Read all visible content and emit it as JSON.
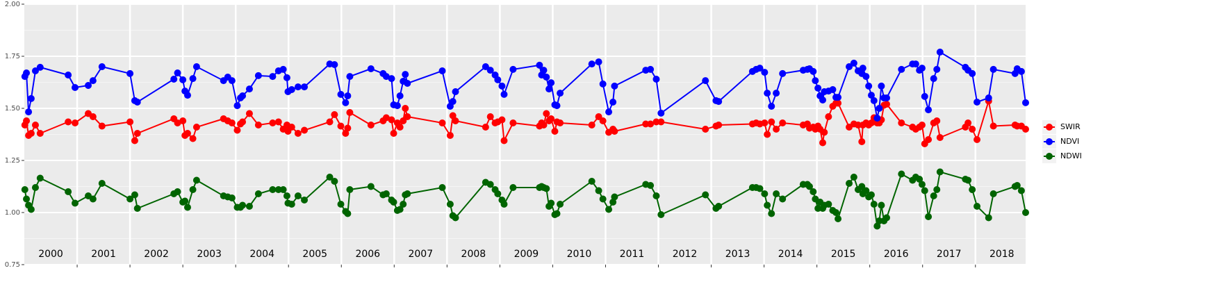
{
  "chart_data": {
    "type": "line",
    "x": [
      2000.01,
      2000.04,
      2000.08,
      2000.13,
      2000.21,
      2000.3,
      2000.83,
      2000.96,
      2001.21,
      2001.3,
      2001.47,
      2002.0,
      2002.09,
      2002.14,
      2002.83,
      2002.9,
      2003.0,
      2003.04,
      2003.09,
      2003.19,
      2003.26,
      2003.77,
      2003.85,
      2003.93,
      2004.03,
      2004.09,
      2004.13,
      2004.26,
      2004.43,
      2004.7,
      2004.81,
      2004.9,
      2004.97,
      2004.99,
      2005.06,
      2005.18,
      2005.3,
      2005.78,
      2005.87,
      2005.99,
      2006.08,
      2006.12,
      2006.16,
      2006.56,
      2006.79,
      2006.85,
      2006.95,
      2006.99,
      2007.06,
      2007.11,
      2007.17,
      2007.21,
      2007.25,
      2007.91,
      2008.06,
      2008.11,
      2008.16,
      2008.73,
      2008.82,
      2008.91,
      2008.96,
      2009.04,
      2009.08,
      2009.25,
      2009.75,
      2009.79,
      2009.83,
      2009.88,
      2009.93,
      2009.97,
      2010.04,
      2010.08,
      2010.14,
      2010.74,
      2010.87,
      2010.95,
      2011.06,
      2011.14,
      2011.17,
      2011.76,
      2011.85,
      2011.96,
      2012.05,
      2012.89,
      2013.09,
      2013.14,
      2013.78,
      2013.85,
      2013.92,
      2014.01,
      2014.06,
      2014.14,
      2014.23,
      2014.35,
      2014.74,
      2014.82,
      2014.86,
      2014.93,
      2014.97,
      2015.02,
      2015.06,
      2015.11,
      2015.14,
      2015.22,
      2015.3,
      2015.36,
      2015.4,
      2015.61,
      2015.7,
      2015.78,
      2015.85,
      2015.87,
      2015.93,
      2015.98,
      2016.03,
      2016.08,
      2016.14,
      2016.18,
      2016.22,
      2016.27,
      2016.32,
      2016.6,
      2016.81,
      2016.87,
      2016.94,
      2016.99,
      2017.04,
      2017.11,
      2017.21,
      2017.27,
      2017.33,
      2017.81,
      2017.86,
      2017.94,
      2018.03,
      2018.25,
      2018.34,
      2018.75,
      2018.79,
      2018.87,
      2018.95
    ],
    "series": [
      {
        "name": "SWIR",
        "color": "#ff0000",
        "values": [
          1.42,
          1.44,
          1.37,
          1.38,
          1.42,
          1.38,
          1.435,
          1.43,
          1.475,
          1.46,
          1.415,
          1.435,
          1.345,
          1.38,
          1.45,
          1.43,
          1.44,
          1.37,
          1.38,
          1.355,
          1.41,
          1.45,
          1.44,
          1.43,
          1.395,
          1.425,
          1.435,
          1.475,
          1.42,
          1.43,
          1.435,
          1.4,
          1.42,
          1.39,
          1.41,
          1.38,
          1.395,
          1.435,
          1.47,
          1.415,
          1.38,
          1.405,
          1.48,
          1.42,
          1.44,
          1.455,
          1.445,
          1.38,
          1.43,
          1.41,
          1.44,
          1.5,
          1.46,
          1.43,
          1.37,
          1.465,
          1.44,
          1.41,
          1.46,
          1.43,
          1.435,
          1.445,
          1.345,
          1.43,
          1.415,
          1.43,
          1.42,
          1.475,
          1.44,
          1.45,
          1.39,
          1.435,
          1.43,
          1.42,
          1.46,
          1.44,
          1.385,
          1.4,
          1.39,
          1.425,
          1.425,
          1.435,
          1.435,
          1.4,
          1.415,
          1.42,
          1.425,
          1.43,
          1.425,
          1.43,
          1.375,
          1.435,
          1.4,
          1.43,
          1.42,
          1.425,
          1.405,
          1.41,
          1.4,
          1.415,
          1.4,
          1.335,
          1.385,
          1.46,
          1.51,
          1.525,
          1.525,
          1.41,
          1.425,
          1.42,
          1.34,
          1.42,
          1.43,
          1.42,
          1.43,
          1.455,
          1.43,
          1.43,
          1.445,
          1.515,
          1.52,
          1.43,
          1.41,
          1.4,
          1.41,
          1.42,
          1.33,
          1.35,
          1.43,
          1.44,
          1.36,
          1.41,
          1.43,
          1.4,
          1.35,
          1.535,
          1.415,
          1.42,
          1.415,
          1.415,
          1.4
        ]
      },
      {
        "name": "NDVI",
        "color": "#0000ff",
        "values": [
          1.653,
          1.67,
          1.483,
          1.547,
          1.68,
          1.697,
          1.66,
          1.6,
          1.61,
          1.633,
          1.7,
          1.667,
          1.537,
          1.53,
          1.64,
          1.67,
          1.637,
          1.583,
          1.563,
          1.643,
          1.7,
          1.633,
          1.65,
          1.633,
          1.513,
          1.55,
          1.56,
          1.593,
          1.657,
          1.653,
          1.68,
          1.687,
          1.647,
          1.58,
          1.59,
          1.603,
          1.603,
          1.713,
          1.71,
          1.567,
          1.527,
          1.56,
          1.653,
          1.69,
          1.667,
          1.653,
          1.643,
          1.517,
          1.513,
          1.56,
          1.63,
          1.663,
          1.62,
          1.68,
          1.51,
          1.533,
          1.58,
          1.7,
          1.683,
          1.66,
          1.637,
          1.607,
          1.567,
          1.687,
          1.707,
          1.66,
          1.683,
          1.65,
          1.593,
          1.623,
          1.517,
          1.513,
          1.573,
          1.713,
          1.723,
          1.617,
          1.483,
          1.53,
          1.607,
          1.683,
          1.687,
          1.64,
          1.477,
          1.633,
          1.537,
          1.533,
          1.677,
          1.687,
          1.693,
          1.673,
          1.573,
          1.51,
          1.573,
          1.667,
          1.683,
          1.687,
          1.69,
          1.677,
          1.633,
          1.597,
          1.56,
          1.54,
          1.58,
          1.583,
          1.59,
          1.553,
          1.553,
          1.7,
          1.717,
          1.68,
          1.667,
          1.693,
          1.653,
          1.607,
          1.563,
          1.537,
          1.453,
          1.5,
          1.607,
          1.55,
          1.55,
          1.687,
          1.713,
          1.713,
          1.683,
          1.693,
          1.557,
          1.493,
          1.643,
          1.687,
          1.77,
          1.697,
          1.683,
          1.667,
          1.53,
          1.55,
          1.687,
          1.667,
          1.69,
          1.677,
          1.527
        ]
      },
      {
        "name": "NDWI",
        "color": "#006400",
        "values": [
          1.11,
          1.065,
          1.035,
          1.015,
          1.12,
          1.165,
          1.1,
          1.045,
          1.08,
          1.065,
          1.14,
          1.065,
          1.085,
          1.02,
          1.09,
          1.1,
          1.05,
          1.055,
          1.025,
          1.11,
          1.155,
          1.08,
          1.075,
          1.07,
          1.025,
          1.025,
          1.035,
          1.03,
          1.09,
          1.11,
          1.11,
          1.11,
          1.08,
          1.045,
          1.04,
          1.08,
          1.06,
          1.17,
          1.15,
          1.04,
          1.005,
          0.995,
          1.11,
          1.125,
          1.085,
          1.09,
          1.06,
          1.05,
          1.01,
          1.015,
          1.04,
          1.085,
          1.09,
          1.12,
          1.04,
          0.985,
          0.975,
          1.145,
          1.135,
          1.11,
          1.09,
          1.06,
          1.04,
          1.12,
          1.12,
          1.125,
          1.12,
          1.115,
          1.03,
          1.045,
          0.99,
          0.995,
          1.04,
          1.15,
          1.105,
          1.065,
          1.015,
          1.05,
          1.075,
          1.135,
          1.13,
          1.08,
          0.99,
          1.085,
          1.02,
          1.03,
          1.12,
          1.12,
          1.115,
          1.09,
          1.035,
          0.995,
          1.09,
          1.065,
          1.135,
          1.135,
          1.125,
          1.1,
          1.065,
          1.02,
          1.05,
          1.02,
          1.035,
          1.04,
          1.01,
          1.0,
          0.97,
          1.14,
          1.17,
          1.11,
          1.125,
          1.09,
          1.105,
          1.075,
          1.085,
          1.04,
          0.935,
          0.96,
          1.035,
          0.96,
          0.975,
          1.185,
          1.155,
          1.17,
          1.16,
          1.135,
          1.105,
          0.98,
          1.08,
          1.11,
          1.195,
          1.16,
          1.155,
          1.11,
          1.03,
          0.975,
          1.09,
          1.125,
          1.13,
          1.105,
          1.0
        ]
      }
    ],
    "xlim": [
      2000,
      2018.95
    ],
    "xticks": [
      {
        "value": 2000.5,
        "label": "2000"
      },
      {
        "value": 2001.5,
        "label": "2001"
      },
      {
        "value": 2002.5,
        "label": "2002"
      },
      {
        "value": 2003.5,
        "label": "2003"
      },
      {
        "value": 2004.5,
        "label": "2004"
      },
      {
        "value": 2005.5,
        "label": "2005"
      },
      {
        "value": 2006.5,
        "label": "2006"
      },
      {
        "value": 2007.5,
        "label": "2007"
      },
      {
        "value": 2008.5,
        "label": "2008"
      },
      {
        "value": 2009.5,
        "label": "2009"
      },
      {
        "value": 2010.5,
        "label": "2010"
      },
      {
        "value": 2011.5,
        "label": "2011"
      },
      {
        "value": 2012.5,
        "label": "2012"
      },
      {
        "value": 2013.5,
        "label": "2013"
      },
      {
        "value": 2014.5,
        "label": "2014"
      },
      {
        "value": 2015.5,
        "label": "2015"
      },
      {
        "value": 2016.5,
        "label": "2016"
      },
      {
        "value": 2017.5,
        "label": "2017"
      },
      {
        "value": 2018.5,
        "label": "2018"
      }
    ],
    "xgrid": [
      2001,
      2002,
      2003,
      2004,
      2005,
      2006,
      2007,
      2008,
      2009,
      2010,
      2011,
      2012,
      2013,
      2014,
      2015,
      2016,
      2017,
      2018
    ],
    "ylim": [
      0.75,
      2.0
    ],
    "yticks": [
      0.75,
      {
        "value": 1.0,
        "label": "1.00"
      },
      1.25,
      {
        "value": 1.5,
        "label": "1.50"
      },
      1.75,
      {
        "value": 2.0,
        "label": "2.00"
      }
    ],
    "grid": true
  }
}
